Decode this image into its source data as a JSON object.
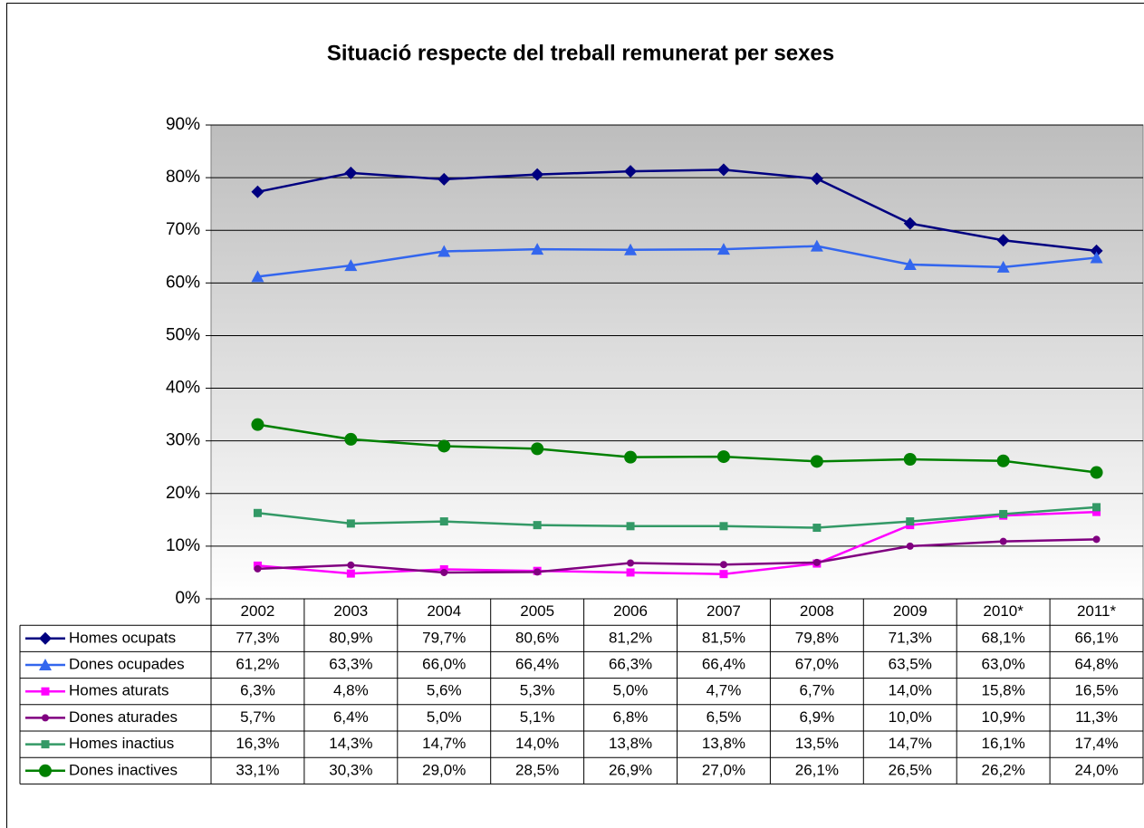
{
  "chart_data": {
    "type": "line",
    "title": "Situació respecte del treball remunerat per sexes",
    "categories": [
      "2002",
      "2003",
      "2004",
      "2005",
      "2006",
      "2007",
      "2008",
      "2009",
      "2010*",
      "2011*"
    ],
    "ylim": [
      0,
      90
    ],
    "yticks": [
      {
        "value": 0,
        "label": "0%"
      },
      {
        "value": 10,
        "label": "10%"
      },
      {
        "value": 20,
        "label": "20%"
      },
      {
        "value": 30,
        "label": "30%"
      },
      {
        "value": 40,
        "label": "40%"
      },
      {
        "value": 50,
        "label": "50%"
      },
      {
        "value": 60,
        "label": "60%"
      },
      {
        "value": 70,
        "label": "70%"
      },
      {
        "value": 80,
        "label": "80%"
      },
      {
        "value": 90,
        "label": "90%"
      }
    ],
    "grid": true,
    "series": [
      {
        "name": "Homes ocupats",
        "color": "#000080",
        "marker": "diamond",
        "values": [
          77.3,
          80.9,
          79.7,
          80.6,
          81.2,
          81.5,
          79.8,
          71.3,
          68.1,
          66.1
        ],
        "value_labels": [
          "77,3%",
          "80,9%",
          "79,7%",
          "80,6%",
          "81,2%",
          "81,5%",
          "79,8%",
          "71,3%",
          "68,1%",
          "66,1%"
        ]
      },
      {
        "name": "Dones ocupades",
        "color": "#3366ee",
        "marker": "triangle",
        "values": [
          61.2,
          63.3,
          66.0,
          66.4,
          66.3,
          66.4,
          67.0,
          63.5,
          63.0,
          64.8
        ],
        "value_labels": [
          "61,2%",
          "63,3%",
          "66,0%",
          "66,4%",
          "66,3%",
          "66,4%",
          "67,0%",
          "63,5%",
          "63,0%",
          "64,8%"
        ]
      },
      {
        "name": "Homes aturats",
        "color": "#ff00ff",
        "marker": "square",
        "values": [
          6.3,
          4.8,
          5.6,
          5.3,
          5.0,
          4.7,
          6.7,
          14.0,
          15.8,
          16.5
        ],
        "value_labels": [
          "6,3%",
          "4,8%",
          "5,6%",
          "5,3%",
          "5,0%",
          "4,7%",
          "6,7%",
          "14,0%",
          "15,8%",
          "16,5%"
        ]
      },
      {
        "name": "Dones aturades",
        "color": "#800080",
        "marker": "circle-small",
        "values": [
          5.7,
          6.4,
          5.0,
          5.1,
          6.8,
          6.5,
          6.9,
          10.0,
          10.9,
          11.3
        ],
        "value_labels": [
          "5,7%",
          "6,4%",
          "5,0%",
          "5,1%",
          "6,8%",
          "6,5%",
          "6,9%",
          "10,0%",
          "10,9%",
          "11,3%"
        ]
      },
      {
        "name": "Homes inactius",
        "color": "#339966",
        "marker": "square",
        "values": [
          16.3,
          14.3,
          14.7,
          14.0,
          13.8,
          13.8,
          13.5,
          14.7,
          16.1,
          17.4
        ],
        "value_labels": [
          "16,3%",
          "14,3%",
          "14,7%",
          "14,0%",
          "13,8%",
          "13,8%",
          "13,5%",
          "14,7%",
          "16,1%",
          "17,4%"
        ]
      },
      {
        "name": "Dones inactives",
        "color": "#008000",
        "marker": "circle",
        "values": [
          33.1,
          30.3,
          29.0,
          28.5,
          26.9,
          27.0,
          26.1,
          26.5,
          26.2,
          24.0
        ],
        "value_labels": [
          "33,1%",
          "30,3%",
          "29,0%",
          "28,5%",
          "26,9%",
          "27,0%",
          "26,1%",
          "26,5%",
          "26,2%",
          "24,0%"
        ]
      }
    ]
  }
}
